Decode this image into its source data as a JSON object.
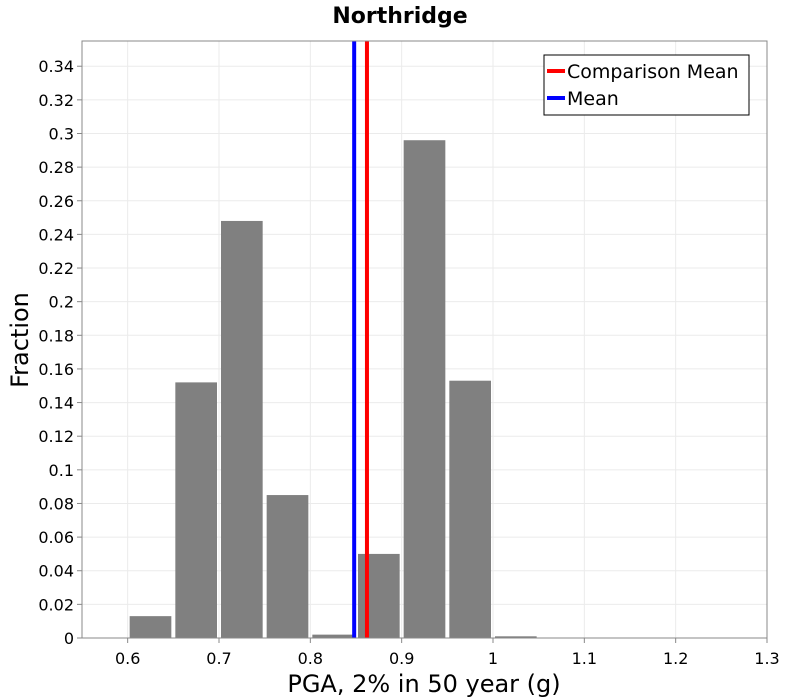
{
  "chart_data": {
    "type": "bar",
    "title": "Northridge",
    "xlabel": "PGA, 2% in 50 year (g)",
    "ylabel": "Fraction",
    "xlim": [
      0.55,
      1.3
    ],
    "ylim": [
      0,
      0.355
    ],
    "xticks": [
      0.6,
      0.7,
      0.8,
      0.9,
      1.0,
      1.1,
      1.2,
      1.3
    ],
    "xtick_labels": [
      "0.6",
      "0.7",
      "0.8",
      "0.9",
      "1",
      "1.1",
      "1.2",
      "1.3"
    ],
    "yticks": [
      0,
      0.02,
      0.04,
      0.06,
      0.08,
      0.1,
      0.12,
      0.14,
      0.16,
      0.18,
      0.2,
      0.22,
      0.24,
      0.26,
      0.28,
      0.3,
      0.32,
      0.34
    ],
    "ytick_labels": [
      "0",
      "0.02",
      "0.04",
      "0.06",
      "0.08",
      "0.1",
      "0.12",
      "0.14",
      "0.16",
      "0.18",
      "0.2",
      "0.22",
      "0.24",
      "0.26",
      "0.28",
      "0.3",
      "0.32",
      "0.34"
    ],
    "bin_width": 0.05,
    "bins": [
      {
        "center": 0.625,
        "value": 0.013
      },
      {
        "center": 0.675,
        "value": 0.152
      },
      {
        "center": 0.725,
        "value": 0.248
      },
      {
        "center": 0.775,
        "value": 0.085
      },
      {
        "center": 0.825,
        "value": 0.002
      },
      {
        "center": 0.875,
        "value": 0.05
      },
      {
        "center": 0.925,
        "value": 0.296
      },
      {
        "center": 0.975,
        "value": 0.153
      },
      {
        "center": 1.025,
        "value": 0.001
      }
    ],
    "bar_color": "#808080",
    "lines": [
      {
        "name": "Comparison Mean",
        "x": 0.862,
        "color": "#ff0000"
      },
      {
        "name": "Mean",
        "x": 0.848,
        "color": "#0000ff"
      }
    ],
    "legend": {
      "position": "top-right",
      "entries": [
        {
          "label": "Comparison Mean",
          "color": "#ff0000"
        },
        {
          "label": "Mean",
          "color": "#0000ff"
        }
      ]
    },
    "grid": true
  }
}
